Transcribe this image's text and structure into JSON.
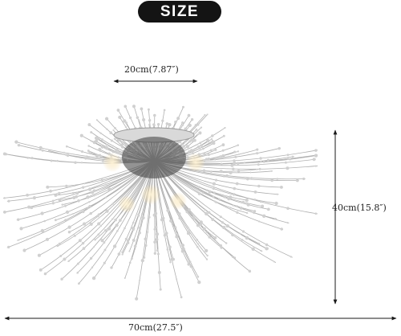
{
  "badge": {
    "label": "SIZE"
  },
  "dimensions": {
    "top_width": "20cm(7.87″)",
    "height": "40cm(15.8″)",
    "overall_width": "70cm(27.5″)"
  },
  "colors": {
    "badge_bg": "#141414",
    "dimension_line": "#1a1a1a",
    "fixture_metal": "#b8b8b8",
    "bulb_glow": "#f2d9a0"
  },
  "icon": "crystal-dandelion-chandelier"
}
